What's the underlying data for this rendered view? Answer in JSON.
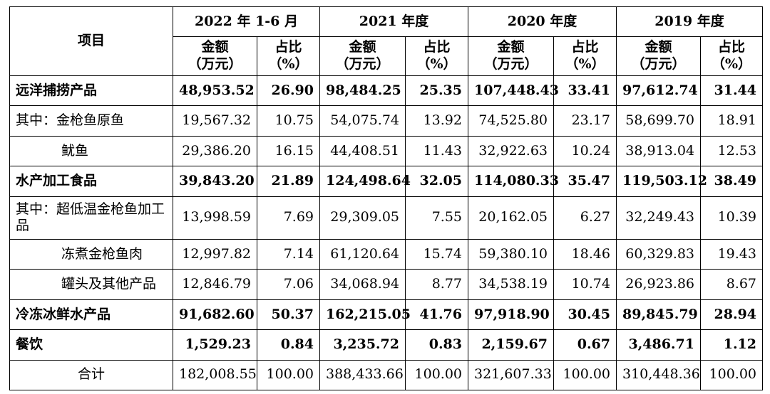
{
  "header": {
    "item_label": "项目",
    "periods": [
      "2022 年 1-6 月",
      "2021 年度",
      "2020 年度",
      "2019 年度"
    ],
    "amount_label": [
      "金额",
      "（万元）"
    ],
    "ratio_label": [
      "占比",
      "（%）"
    ]
  },
  "rows": [
    {
      "label": "远洋捕捞产品",
      "bold": true,
      "indent": false,
      "values": [
        "48,953.52",
        "26.90",
        "98,484.25",
        "25.35",
        "107,448.43",
        "33.41",
        "97,612.74",
        "31.44"
      ]
    },
    {
      "label": "其中：金枪鱼原鱼",
      "bold": false,
      "indent": false,
      "values": [
        "19,567.32",
        "10.75",
        "54,075.74",
        "13.92",
        "74,525.80",
        "23.17",
        "58,699.70",
        "18.91"
      ]
    },
    {
      "label": "鱿鱼",
      "bold": false,
      "indent": true,
      "values": [
        "29,386.20",
        "16.15",
        "44,408.51",
        "11.43",
        "32,922.63",
        "10.24",
        "38,913.04",
        "12.53"
      ]
    },
    {
      "label": "水产加工食品",
      "bold": true,
      "indent": false,
      "values": [
        "39,843.20",
        "21.89",
        "124,498.64",
        "32.05",
        "114,080.33",
        "35.47",
        "119,503.12",
        "38.49"
      ]
    },
    {
      "label": "其中：超低温金枪鱼加工品",
      "bold": false,
      "indent": false,
      "values": [
        "13,998.59",
        "7.69",
        "29,309.05",
        "7.55",
        "20,162.05",
        "6.27",
        "32,249.43",
        "10.39"
      ]
    },
    {
      "label": "冻煮金枪鱼肉",
      "bold": false,
      "indent": true,
      "values": [
        "12,997.82",
        "7.14",
        "61,120.64",
        "15.74",
        "59,380.10",
        "18.46",
        "60,329.83",
        "19.43"
      ]
    },
    {
      "label": "罐头及其他产品",
      "bold": false,
      "indent": true,
      "values": [
        "12,846.79",
        "7.06",
        "34,068.94",
        "8.77",
        "34,538.19",
        "10.74",
        "26,923.86",
        "8.67"
      ]
    },
    {
      "label": "冷冻冰鲜水产品",
      "bold": true,
      "indent": false,
      "values": [
        "91,682.60",
        "50.37",
        "162,215.05",
        "41.76",
        "97,918.90",
        "30.45",
        "89,845.79",
        "28.94"
      ]
    },
    {
      "label": "餐饮",
      "bold": true,
      "indent": false,
      "values": [
        "1,529.23",
        "0.84",
        "3,235.72",
        "0.83",
        "2,159.67",
        "0.67",
        "3,486.71",
        "1.12"
      ]
    },
    {
      "label": "合计",
      "bold": false,
      "indent": false,
      "center": true,
      "values": [
        "182,008.55",
        "100.00",
        "388,433.66",
        "100.00",
        "321,607.33",
        "100.00",
        "310,448.36",
        "100.00"
      ]
    }
  ]
}
